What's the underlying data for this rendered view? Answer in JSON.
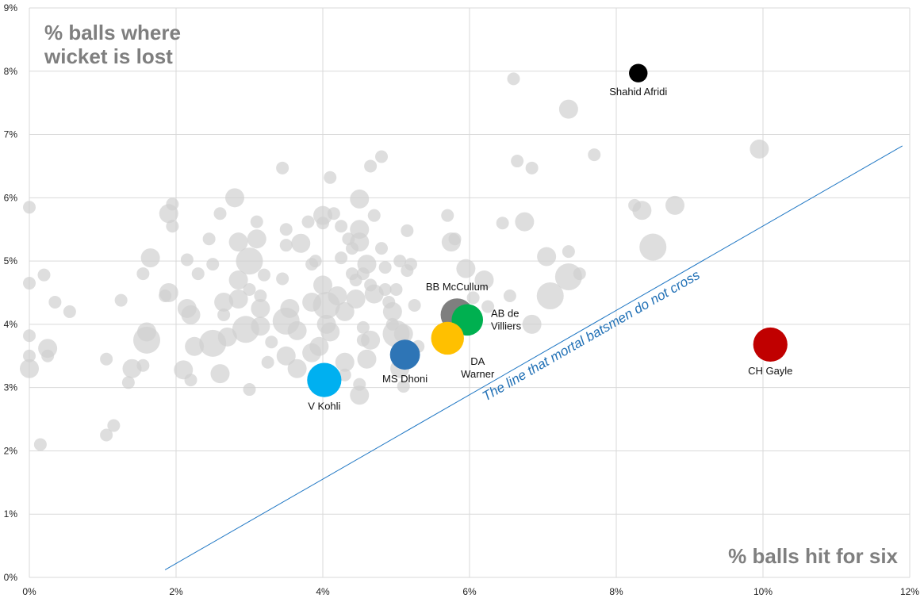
{
  "chart_data": {
    "type": "scatter",
    "title": "",
    "xlabel": "% balls hit for six",
    "ylabel_lines": [
      "% balls where",
      "wicket is lost"
    ],
    "xlim": [
      0,
      12
    ],
    "ylim": [
      0,
      9
    ],
    "x_ticks": [
      "0%",
      "2%",
      "4%",
      "6%",
      "8%",
      "10%",
      "12%"
    ],
    "y_ticks": [
      "0%",
      "1%",
      "2%",
      "3%",
      "4%",
      "5%",
      "6%",
      "7%",
      "8%",
      "9%"
    ],
    "grid": true,
    "trend_line": {
      "label": "The line that mortal batsmen do not cross",
      "color": "#1f77c4",
      "from": [
        1.85,
        0.12
      ],
      "to": [
        11.9,
        6.82
      ]
    },
    "background_color": "#d0d0d0",
    "background_points": [
      [
        0.0,
        5.85,
        1
      ],
      [
        0.0,
        4.65,
        1
      ],
      [
        0.2,
        4.78,
        1
      ],
      [
        0.35,
        4.35,
        1
      ],
      [
        0.55,
        4.2,
        1
      ],
      [
        0.0,
        3.82,
        1
      ],
      [
        0.0,
        3.5,
        1
      ],
      [
        0.0,
        3.3,
        2
      ],
      [
        0.25,
        3.62,
        2
      ],
      [
        0.25,
        3.5,
        1
      ],
      [
        0.15,
        2.1,
        1
      ],
      [
        1.05,
        3.45,
        1
      ],
      [
        1.25,
        4.38,
        1
      ],
      [
        1.05,
        2.25,
        1
      ],
      [
        1.15,
        2.4,
        1
      ],
      [
        1.35,
        3.08,
        1
      ],
      [
        1.4,
        3.3,
        2
      ],
      [
        1.55,
        3.35,
        1
      ],
      [
        1.6,
        3.75,
        3
      ],
      [
        1.6,
        3.88,
        2
      ],
      [
        1.65,
        5.05,
        2
      ],
      [
        1.55,
        4.8,
        1
      ],
      [
        1.9,
        5.75,
        2
      ],
      [
        1.95,
        5.9,
        1
      ],
      [
        1.95,
        5.55,
        1
      ],
      [
        1.9,
        4.5,
        2
      ],
      [
        1.85,
        4.45,
        1
      ],
      [
        2.15,
        5.02,
        1
      ],
      [
        2.15,
        4.25,
        2
      ],
      [
        2.2,
        4.15,
        2
      ],
      [
        2.25,
        3.65,
        2
      ],
      [
        2.2,
        3.12,
        1
      ],
      [
        2.1,
        3.28,
        2
      ],
      [
        2.3,
        4.8,
        1
      ],
      [
        2.45,
        5.35,
        1
      ],
      [
        2.5,
        4.95,
        1
      ],
      [
        2.5,
        3.7,
        3
      ],
      [
        2.65,
        4.35,
        2
      ],
      [
        2.65,
        4.15,
        1
      ],
      [
        2.7,
        3.8,
        2
      ],
      [
        2.6,
        3.22,
        2
      ],
      [
        2.6,
        5.75,
        1
      ],
      [
        2.8,
        6.0,
        2
      ],
      [
        2.85,
        5.3,
        2
      ],
      [
        2.85,
        4.7,
        2
      ],
      [
        2.85,
        4.4,
        2
      ],
      [
        3.0,
        5.0,
        3
      ],
      [
        2.95,
        3.92,
        3
      ],
      [
        3.0,
        4.55,
        1
      ],
      [
        3.1,
        5.62,
        1
      ],
      [
        3.1,
        5.35,
        2
      ],
      [
        3.2,
        4.78,
        1
      ],
      [
        3.15,
        4.45,
        1
      ],
      [
        3.15,
        4.25,
        2
      ],
      [
        3.15,
        3.97,
        2
      ],
      [
        3.3,
        3.72,
        1
      ],
      [
        3.25,
        3.4,
        1
      ],
      [
        3.0,
        2.97,
        1
      ],
      [
        3.45,
        6.47,
        1
      ],
      [
        3.5,
        5.5,
        1
      ],
      [
        3.5,
        5.25,
        1
      ],
      [
        3.45,
        4.72,
        1
      ],
      [
        3.55,
        4.25,
        2
      ],
      [
        3.5,
        4.05,
        3
      ],
      [
        3.65,
        3.3,
        2
      ],
      [
        3.5,
        3.5,
        2
      ],
      [
        3.65,
        3.9,
        2
      ],
      [
        3.7,
        5.28,
        2
      ],
      [
        3.8,
        5.62,
        1
      ],
      [
        3.85,
        4.95,
        1
      ],
      [
        3.85,
        4.35,
        2
      ],
      [
        3.85,
        3.55,
        2
      ],
      [
        3.95,
        3.65,
        2
      ],
      [
        3.9,
        5.0,
        1
      ],
      [
        4.0,
        5.72,
        2
      ],
      [
        4.0,
        5.6,
        1
      ],
      [
        4.0,
        4.62,
        2
      ],
      [
        4.05,
        4.3,
        3
      ],
      [
        4.05,
        4.0,
        2
      ],
      [
        4.1,
        3.88,
        2
      ],
      [
        4.1,
        6.32,
        1
      ],
      [
        4.15,
        5.75,
        1
      ],
      [
        4.25,
        5.55,
        1
      ],
      [
        4.25,
        5.05,
        1
      ],
      [
        4.2,
        4.45,
        2
      ],
      [
        4.3,
        4.2,
        2
      ],
      [
        4.3,
        3.4,
        2
      ],
      [
        4.3,
        3.2,
        1
      ],
      [
        4.35,
        5.35,
        1
      ],
      [
        4.4,
        5.2,
        1
      ],
      [
        4.4,
        4.8,
        1
      ],
      [
        4.45,
        4.7,
        1
      ],
      [
        4.45,
        4.4,
        2
      ],
      [
        4.5,
        5.98,
        2
      ],
      [
        4.5,
        5.5,
        2
      ],
      [
        4.5,
        5.3,
        2
      ],
      [
        4.55,
        4.8,
        1
      ],
      [
        4.55,
        3.95,
        1
      ],
      [
        4.55,
        3.75,
        1
      ],
      [
        4.5,
        3.05,
        1
      ],
      [
        4.5,
        2.88,
        2
      ],
      [
        4.65,
        6.5,
        1
      ],
      [
        4.7,
        5.72,
        1
      ],
      [
        4.6,
        4.95,
        2
      ],
      [
        4.65,
        4.62,
        1
      ],
      [
        4.7,
        4.48,
        2
      ],
      [
        4.65,
        3.75,
        2
      ],
      [
        4.6,
        3.45,
        2
      ],
      [
        4.8,
        6.65,
        1
      ],
      [
        4.8,
        5.2,
        1
      ],
      [
        4.85,
        4.9,
        1
      ],
      [
        4.85,
        4.55,
        1
      ],
      [
        4.9,
        4.35,
        1
      ],
      [
        4.95,
        4.2,
        2
      ],
      [
        4.95,
        4.0,
        1
      ],
      [
        5.0,
        4.55,
        1
      ],
      [
        5.0,
        3.85,
        3
      ],
      [
        5.05,
        5.0,
        1
      ],
      [
        5.05,
        3.3,
        2
      ],
      [
        5.15,
        5.48,
        1
      ],
      [
        5.15,
        4.85,
        1
      ],
      [
        5.2,
        4.95,
        1
      ],
      [
        5.25,
        4.3,
        1
      ],
      [
        5.3,
        3.65,
        1
      ],
      [
        5.1,
        3.02,
        1
      ],
      [
        5.1,
        3.85,
        2
      ],
      [
        5.7,
        5.72,
        1
      ],
      [
        5.75,
        5.3,
        2
      ],
      [
        5.8,
        5.35,
        1
      ],
      [
        5.95,
        4.88,
        2
      ],
      [
        6.05,
        4.42,
        1
      ],
      [
        6.05,
        4.1,
        1
      ],
      [
        6.2,
        4.7,
        2
      ],
      [
        6.25,
        4.28,
        1
      ],
      [
        6.45,
        5.6,
        1
      ],
      [
        6.55,
        4.45,
        1
      ],
      [
        6.6,
        7.88,
        1
      ],
      [
        6.65,
        6.58,
        1
      ],
      [
        6.75,
        5.62,
        2
      ],
      [
        6.85,
        6.47,
        1
      ],
      [
        6.85,
        4.0,
        2
      ],
      [
        7.05,
        5.07,
        2
      ],
      [
        7.1,
        4.45,
        3
      ],
      [
        7.35,
        7.4,
        2
      ],
      [
        7.35,
        5.15,
        1
      ],
      [
        7.35,
        4.75,
        3
      ],
      [
        7.5,
        4.8,
        1
      ],
      [
        7.7,
        6.68,
        1
      ],
      [
        8.25,
        5.88,
        1
      ],
      [
        8.35,
        5.8,
        2
      ],
      [
        8.5,
        5.22,
        3
      ],
      [
        8.8,
        5.88,
        2
      ],
      [
        9.95,
        6.77,
        2
      ],
      [
        10.0,
        3.75,
        1
      ]
    ],
    "highlighted_points": [
      {
        "name": "Shahid Afridi",
        "x": 8.3,
        "y": 7.97,
        "size": 1.3,
        "color": "#000000",
        "label_lines": [
          "Shahid Afridi"
        ],
        "label_pos": "below"
      },
      {
        "name": "CH Gayle",
        "x": 10.1,
        "y": 3.68,
        "size": 2.4,
        "color": "#c00000",
        "label_lines": [
          "CH Gayle"
        ],
        "label_pos": "below"
      },
      {
        "name": "BB McCullum",
        "x": 5.83,
        "y": 4.15,
        "size": 2.3,
        "color": "#7f7f7f",
        "label_lines": [
          "BB McCullum"
        ],
        "label_pos": "above"
      },
      {
        "name": "AB de Villiers",
        "x": 5.97,
        "y": 4.07,
        "size": 2.2,
        "color": "#00b050",
        "label_lines": [
          "AB de",
          "Villiers"
        ],
        "label_pos": "right"
      },
      {
        "name": "DA Warner",
        "x": 5.7,
        "y": 3.78,
        "size": 2.3,
        "color": "#ffc000",
        "label_lines": [
          "DA",
          "Warner"
        ],
        "label_pos": "below-right"
      },
      {
        "name": "MS Dhoni",
        "x": 5.12,
        "y": 3.52,
        "size": 2.1,
        "color": "#2e75b6",
        "label_lines": [
          "MS Dhoni"
        ],
        "label_pos": "below"
      },
      {
        "name": "V Kohli",
        "x": 4.02,
        "y": 3.12,
        "size": 2.4,
        "color": "#00b0f0",
        "label_lines": [
          "V Kohli"
        ],
        "label_pos": "below"
      }
    ]
  }
}
